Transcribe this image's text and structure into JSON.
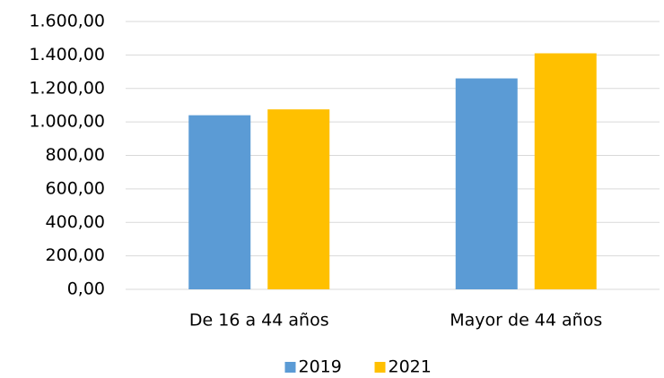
{
  "chart_data": {
    "type": "bar",
    "categories": [
      "De 16 a 44 años",
      "Mayor de 44 años"
    ],
    "series": [
      {
        "name": "2019",
        "color": "#5b9bd5",
        "values": [
          1040,
          1260
        ]
      },
      {
        "name": "2021",
        "color": "#ffc000",
        "values": [
          1075,
          1410
        ]
      }
    ],
    "ylim": [
      0,
      1600
    ],
    "yticks": [
      {
        "value": 0,
        "label": "0,00"
      },
      {
        "value": 200,
        "label": "200,00"
      },
      {
        "value": 400,
        "label": "400,00"
      },
      {
        "value": 600,
        "label": "600,00"
      },
      {
        "value": 800,
        "label": "800,00"
      },
      {
        "value": 1000,
        "label": "1.000,00"
      },
      {
        "value": 1200,
        "label": "1.200,00"
      },
      {
        "value": 1400,
        "label": "1.400,00"
      },
      {
        "value": 1600,
        "label": "1.600,00"
      }
    ],
    "grid": true,
    "legend": "bottom"
  }
}
